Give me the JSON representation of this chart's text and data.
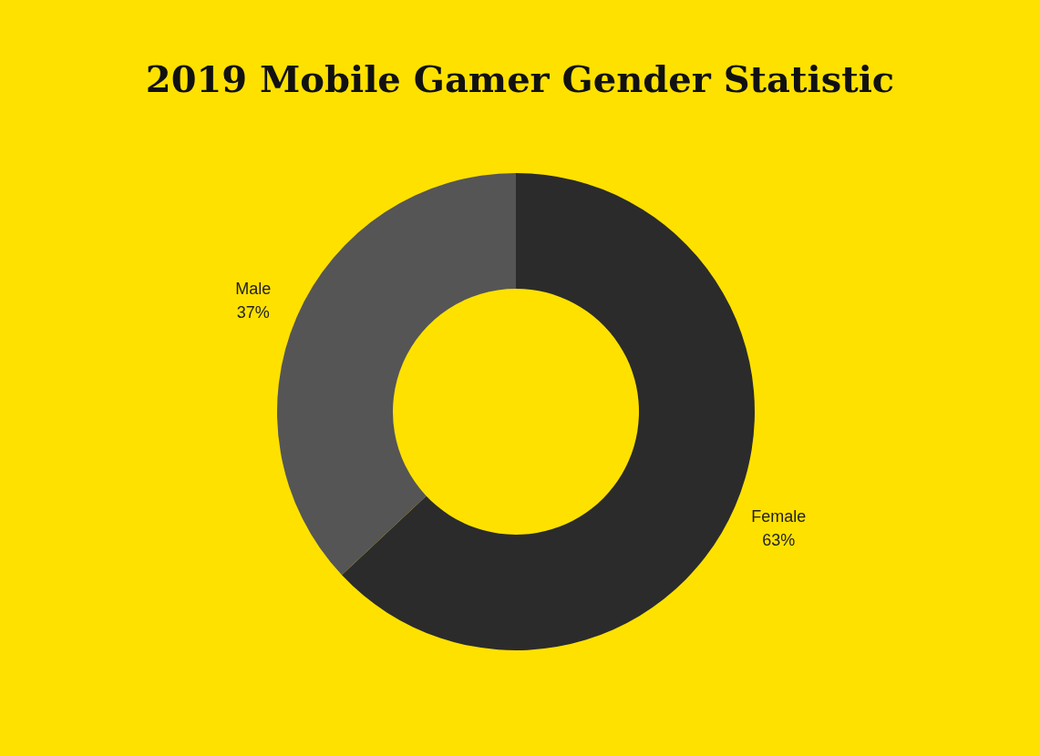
{
  "chart_data": {
    "type": "donut",
    "title": "2019 Mobile Gamer Gender Statistic",
    "categories": [
      "Female",
      "Male"
    ],
    "values": [
      63,
      37
    ],
    "value_labels": [
      "63%",
      "37%"
    ],
    "colors": [
      "#2b2b2b",
      "#555555"
    ]
  }
}
